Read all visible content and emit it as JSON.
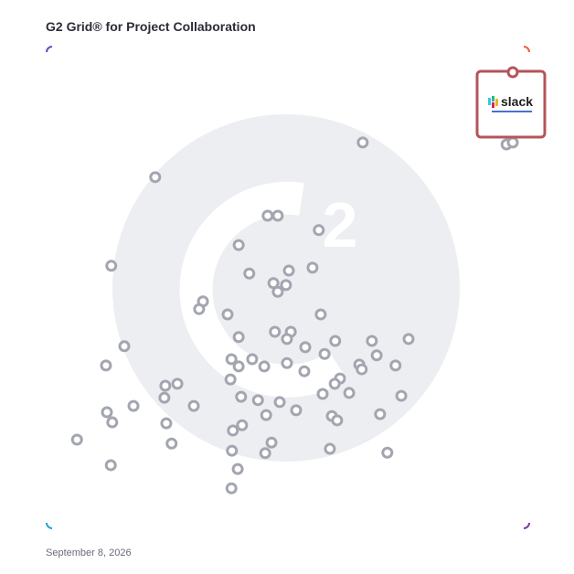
{
  "chart_data": {
    "type": "scatter",
    "title": "G2 Grid® for Project Collaboration",
    "date": "September 8, 2026",
    "highlight": "slack",
    "color": "#a3a6b0",
    "xlim": [
      0,
      100
    ],
    "ylim": [
      0,
      100
    ],
    "x": [
      65.5,
      95.3,
      96.6,
      22.5,
      45.8,
      47.9,
      56.4,
      39.8,
      13.4,
      42.0,
      50.2,
      55.1,
      47.0,
      49.6,
      47.9,
      32.4,
      31.6,
      37.5,
      56.8,
      47.3,
      50.6,
      49.8,
      39.8,
      59.8,
      67.4,
      75.0,
      16.1,
      53.6,
      57.6,
      68.4,
      38.3,
      42.6,
      39.8,
      45.1,
      49.8,
      12.3,
      64.8,
      65.3,
      72.3,
      53.4,
      38.1,
      60.8,
      59.7,
      27.1,
      24.6,
      24.4,
      40.3,
      43.8,
      48.3,
      57.2,
      62.7,
      73.5,
      18.0,
      30.5,
      12.5,
      51.7,
      45.5,
      59.1,
      60.2,
      69.1,
      13.6,
      24.8,
      40.5,
      38.6,
      6.3,
      25.9,
      46.6,
      38.4,
      45.3,
      58.7,
      70.6,
      13.3,
      39.6,
      38.3
    ],
    "values": [
      80.1,
      79.7,
      80.1,
      72.9,
      64.9,
      64.9,
      61.9,
      58.8,
      54.5,
      52.9,
      53.5,
      54.1,
      50.9,
      50.5,
      49.1,
      47.1,
      45.5,
      44.4,
      44.4,
      40.8,
      40.8,
      39.3,
      39.7,
      38.9,
      38.9,
      39.3,
      37.8,
      37.6,
      36.2,
      35.9,
      35.1,
      35.1,
      33.6,
      33.6,
      34.3,
      33.8,
      34.0,
      33.0,
      33.8,
      32.6,
      30.9,
      31.1,
      30.0,
      30.0,
      29.6,
      27.1,
      27.3,
      26.6,
      26.2,
      27.9,
      28.1,
      27.5,
      25.4,
      25.4,
      24.1,
      24.5,
      23.5,
      23.3,
      22.4,
      23.7,
      22.0,
      21.8,
      21.4,
      20.3,
      18.4,
      17.6,
      17.8,
      16.1,
      15.6,
      16.5,
      15.7,
      13.1,
      12.3,
      8.3
    ]
  }
}
